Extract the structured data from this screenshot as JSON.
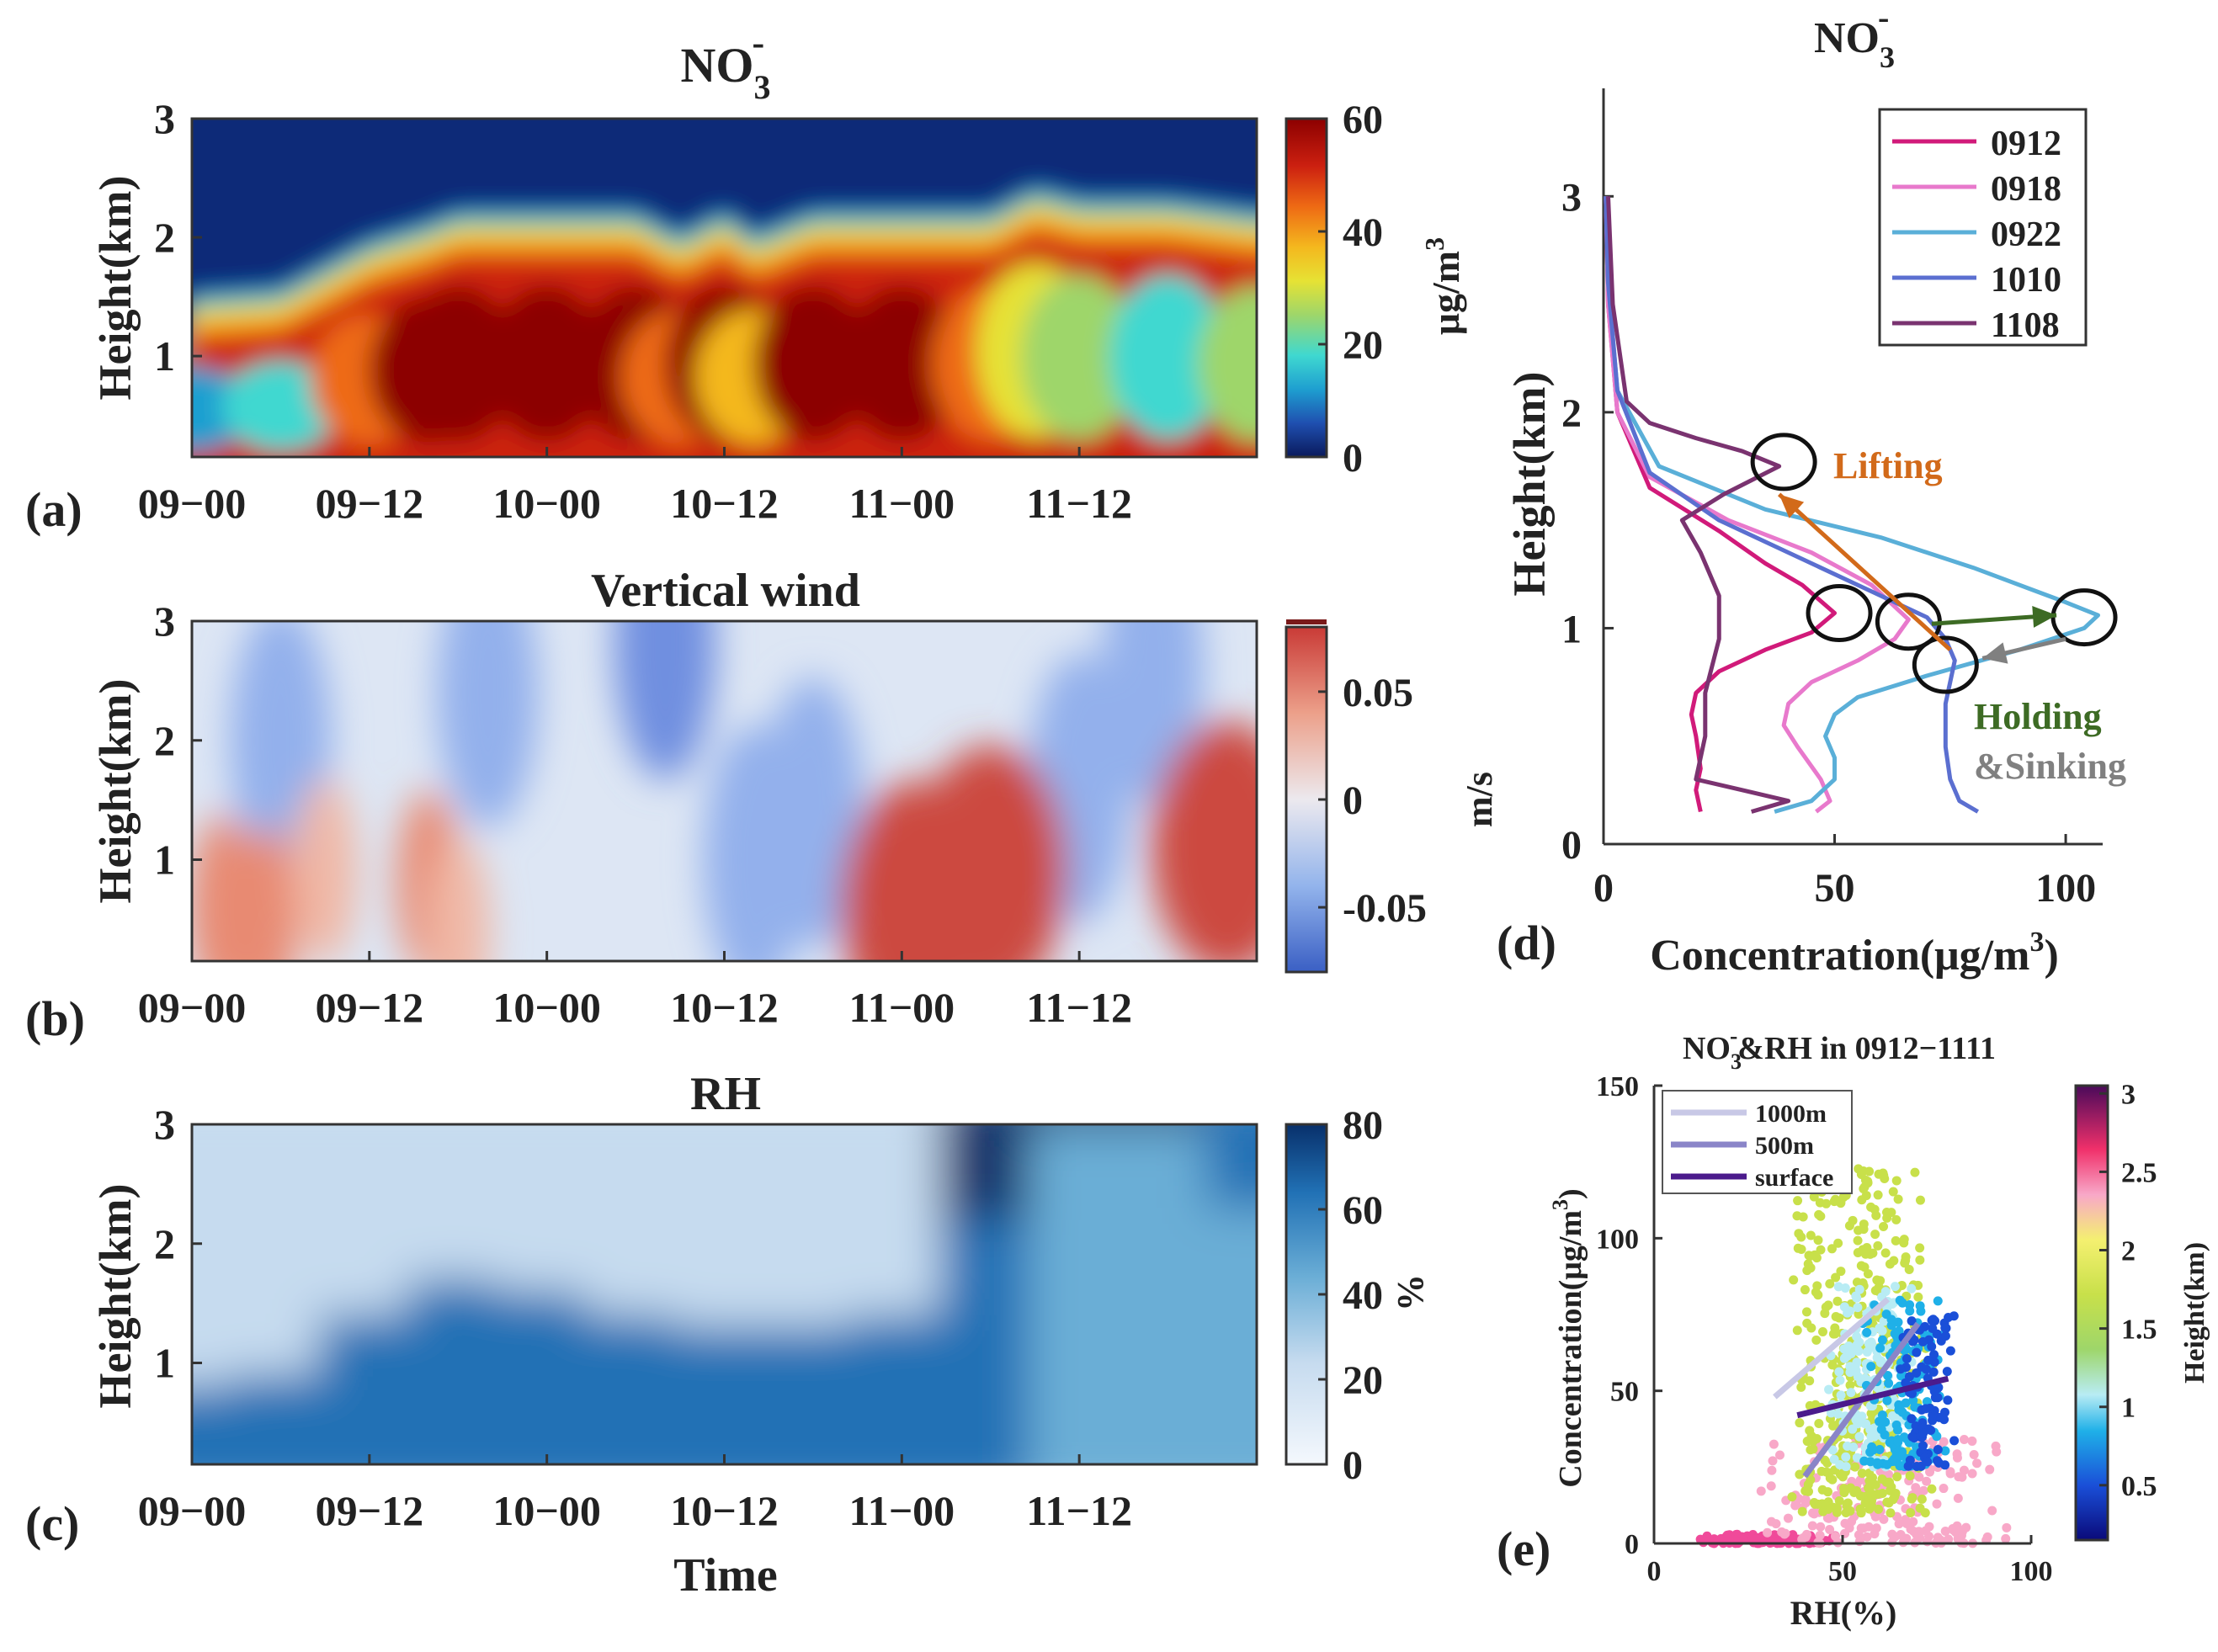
{
  "panels": {
    "a": {
      "label": "(a)",
      "title_main": "NO",
      "title_sub": "3",
      "title_sup": "-",
      "ylabel": "Height(km)",
      "yticks": [
        "1",
        "2",
        "3"
      ],
      "xticks": [
        "09−00",
        "09−12",
        "10−00",
        "10−12",
        "11−00",
        "11−12"
      ],
      "colorbar": {
        "ticks": [
          "0",
          "20",
          "40",
          "60"
        ],
        "unit_main": "μg/m",
        "unit_sup": "3"
      }
    },
    "b": {
      "label": "(b)",
      "title": "Vertical wind",
      "ylabel": "Height(km)",
      "yticks": [
        "1",
        "2",
        "3"
      ],
      "xticks": [
        "09−00",
        "09−12",
        "10−00",
        "10−12",
        "11−00",
        "11−12"
      ],
      "colorbar": {
        "ticks": [
          "-0.05",
          "0",
          "0.05"
        ],
        "unit": "m/s"
      }
    },
    "c": {
      "label": "(c)",
      "title": "RH",
      "ylabel": "Height(km)",
      "xlabel": "Time",
      "yticks": [
        "1",
        "2",
        "3"
      ],
      "xticks": [
        "09−00",
        "09−12",
        "10−00",
        "10−12",
        "11−00",
        "11−12"
      ],
      "colorbar": {
        "ticks": [
          "0",
          "20",
          "40",
          "60",
          "80"
        ],
        "unit": "%"
      }
    },
    "d": {
      "label": "(d)",
      "title_main": "NO",
      "title_sub": "3",
      "title_sup": "-",
      "ylabel": "Height(km)",
      "xlabel_main": "Concentration(μg/m",
      "xlabel_sup": "3",
      "xlabel_end": ")",
      "xticks": [
        "0",
        "50",
        "100"
      ],
      "yticks": [
        "0",
        "1",
        "2",
        "3"
      ],
      "annotations": {
        "lifting": "Lifting",
        "holding": "Holding",
        "sinking": "&Sinking"
      }
    },
    "e": {
      "label": "(e)",
      "title_a": "NO",
      "title_sub": "3",
      "title_sup": "-",
      "title_b": "&RH in 0912−1111",
      "xlabel": "RH(%)",
      "ylabel_main": "Concentration(μg/m",
      "ylabel_sup": "3",
      "ylabel_end": ")",
      "xticks": [
        "0",
        "50",
        "100"
      ],
      "yticks": [
        "0",
        "50",
        "100",
        "150"
      ],
      "colorbar": {
        "ticks": [
          "0.5",
          "1",
          "1.5",
          "2",
          "2.5",
          "3"
        ],
        "label": "Height(km)"
      }
    }
  },
  "chart_data": [
    {
      "type": "heatmap",
      "panel": "a",
      "title": "NO3-",
      "ylabel": "Height(km)",
      "xlim": [
        "09-00",
        "12-00"
      ],
      "ylim": [
        0.15,
        3
      ],
      "clim": [
        0,
        60
      ],
      "colormap": "jet",
      "colorbar_unit": "μg/m3",
      "x_hours": [
        0,
        6,
        12,
        16,
        18,
        24,
        30,
        33,
        36,
        38,
        42,
        48,
        54,
        57,
        60,
        66,
        72
      ],
      "cloud_top_km": [
        1.0,
        1.05,
        1.45,
        1.6,
        1.7,
        1.7,
        1.7,
        1.5,
        1.7,
        1.5,
        1.7,
        1.7,
        1.7,
        1.9,
        1.8,
        1.8,
        1.7
      ],
      "peak_concentration": [
        10,
        14,
        40,
        58,
        60,
        60,
        60,
        40,
        60,
        35,
        60,
        60,
        42,
        30,
        25,
        18,
        22
      ]
    },
    {
      "type": "heatmap",
      "panel": "b",
      "title": "Vertical wind",
      "ylabel": "Height(km)",
      "xlim": [
        "09-00",
        "12-00"
      ],
      "ylim": [
        0.15,
        3
      ],
      "clim": [
        -0.08,
        0.08
      ],
      "colormap": "diverging blue-white-red",
      "colorbar_unit": "m/s",
      "updraft_cells": [
        {
          "center_hours": 2,
          "center_km": 0.6,
          "value": 0.03
        },
        {
          "center_hours": 5,
          "center_km": 0.5,
          "value": 0.03
        },
        {
          "center_hours": 9,
          "center_km": 0.9,
          "value": 0.02
        },
        {
          "center_hours": 16,
          "center_km": 0.8,
          "value": 0.03
        },
        {
          "center_hours": 18,
          "center_km": 0.4,
          "value": 0.02
        },
        {
          "center_hours": 49,
          "center_km": 0.6,
          "value": 0.06
        },
        {
          "center_hours": 54,
          "center_km": 0.9,
          "value": 0.06
        },
        {
          "center_hours": 70,
          "center_km": 1.1,
          "value": 0.07
        }
      ],
      "downdraft_cells": [
        {
          "center_hours": 6,
          "center_km": 2.0,
          "value": -0.03
        },
        {
          "center_hours": 20,
          "center_km": 2.4,
          "value": -0.03
        },
        {
          "center_hours": 32,
          "center_km": 2.8,
          "value": -0.05
        },
        {
          "center_hours": 38,
          "center_km": 1.0,
          "value": -0.04
        },
        {
          "center_hours": 42,
          "center_km": 1.4,
          "value": -0.03
        },
        {
          "center_hours": 60,
          "center_km": 1.6,
          "value": -0.03
        },
        {
          "center_hours": 65,
          "center_km": 2.6,
          "value": -0.03
        }
      ]
    },
    {
      "type": "heatmap",
      "panel": "c",
      "title": "RH",
      "xlabel": "Time",
      "ylabel": "Height(km)",
      "xlim": [
        "09-00",
        "12-00"
      ],
      "ylim": [
        0.15,
        3
      ],
      "clim": [
        0,
        80
      ],
      "colormap": "Blues",
      "colorbar_unit": "%",
      "x_hours": [
        0,
        6,
        12,
        18,
        24,
        30,
        36,
        42,
        48,
        54,
        60,
        66,
        72
      ],
      "surface_rh": [
        45,
        50,
        55,
        55,
        60,
        60,
        62,
        60,
        55,
        50,
        40,
        30,
        25
      ],
      "layer_top_km": [
        0.8,
        0.9,
        1.4,
        1.7,
        1.6,
        1.4,
        1.3,
        1.3,
        1.4,
        2.2,
        3.0,
        3.0,
        2.3
      ],
      "aloft_rh": [
        5,
        8,
        12,
        15,
        12,
        15,
        10,
        8,
        20,
        80,
        80,
        80,
        60
      ]
    },
    {
      "type": "line",
      "panel": "d",
      "title": "NO3-",
      "xlabel": "Concentration(μg/m3)",
      "ylabel": "Height(km)",
      "xlim": [
        0,
        108
      ],
      "ylim": [
        0,
        3.5
      ],
      "legend_position": "top-right",
      "series": [
        {
          "name": "0912",
          "color": "#d11a7a",
          "points": [
            [
              21,
              0.15
            ],
            [
              20,
              0.25
            ],
            [
              21,
              0.35
            ],
            [
              20,
              0.5
            ],
            [
              19,
              0.6
            ],
            [
              20,
              0.7
            ],
            [
              25,
              0.8
            ],
            [
              35,
              0.9
            ],
            [
              45,
              0.98
            ],
            [
              50,
              1.07
            ],
            [
              43,
              1.2
            ],
            [
              35,
              1.3
            ],
            [
              25,
              1.45
            ],
            [
              10,
              1.65
            ],
            [
              3,
              2.0
            ],
            [
              1,
              2.5
            ],
            [
              0.5,
              3.0
            ]
          ]
        },
        {
          "name": "0918",
          "color": "#e879cc",
          "points": [
            [
              46,
              0.15
            ],
            [
              49,
              0.2
            ],
            [
              47,
              0.3
            ],
            [
              42,
              0.45
            ],
            [
              39,
              0.55
            ],
            [
              40,
              0.65
            ],
            [
              45,
              0.75
            ],
            [
              55,
              0.85
            ],
            [
              63,
              0.95
            ],
            [
              66,
              1.04
            ],
            [
              58,
              1.2
            ],
            [
              45,
              1.35
            ],
            [
              27,
              1.5
            ],
            [
              10,
              1.7
            ],
            [
              3,
              2.0
            ],
            [
              1,
              2.5
            ],
            [
              0.5,
              3.0
            ]
          ]
        },
        {
          "name": "0922",
          "color": "#5aafd8",
          "points": [
            [
              37,
              0.15
            ],
            [
              45,
              0.2
            ],
            [
              50,
              0.3
            ],
            [
              50,
              0.4
            ],
            [
              48,
              0.5
            ],
            [
              50,
              0.6
            ],
            [
              55,
              0.68
            ],
            [
              70,
              0.78
            ],
            [
              90,
              0.9
            ],
            [
              104,
              1.0
            ],
            [
              107,
              1.06
            ],
            [
              100,
              1.12
            ],
            [
              80,
              1.28
            ],
            [
              60,
              1.42
            ],
            [
              35,
              1.55
            ],
            [
              12,
              1.75
            ],
            [
              3,
              2.1
            ],
            [
              1,
              2.6
            ],
            [
              0.5,
              3.0
            ]
          ]
        },
        {
          "name": "1010",
          "color": "#5b6fd0",
          "points": [
            [
              81,
              0.15
            ],
            [
              77,
              0.2
            ],
            [
              75,
              0.3
            ],
            [
              74,
              0.45
            ],
            [
              74,
              0.55
            ],
            [
              74,
              0.65
            ],
            [
              75,
              0.75
            ],
            [
              76,
              0.85
            ],
            [
              74,
              0.95
            ],
            [
              70,
              1.05
            ],
            [
              55,
              1.2
            ],
            [
              40,
              1.35
            ],
            [
              25,
              1.5
            ],
            [
              10,
              1.72
            ],
            [
              3,
              2.1
            ],
            [
              1,
              2.6
            ],
            [
              0.5,
              3.0
            ]
          ]
        },
        {
          "name": "1108",
          "color": "#7a3370",
          "points": [
            [
              32,
              0.15
            ],
            [
              40,
              0.2
            ],
            [
              30,
              0.25
            ],
            [
              20,
              0.3
            ],
            [
              22,
              0.5
            ],
            [
              22,
              0.7
            ],
            [
              25,
              0.95
            ],
            [
              25,
              1.15
            ],
            [
              21,
              1.35
            ],
            [
              17,
              1.5
            ],
            [
              26,
              1.62
            ],
            [
              38,
              1.75
            ],
            [
              30,
              1.82
            ],
            [
              20,
              1.88
            ],
            [
              10,
              1.95
            ],
            [
              5,
              2.05
            ],
            [
              2,
              2.5
            ],
            [
              1,
              3.0
            ]
          ]
        }
      ],
      "markers": [
        {
          "x": 39,
          "y": 1.77
        },
        {
          "x": 51,
          "y": 1.07
        },
        {
          "x": 66,
          "y": 1.03
        },
        {
          "x": 74,
          "y": 0.83
        },
        {
          "x": 104,
          "y": 1.05
        }
      ],
      "arrows": [
        {
          "name": "Lifting",
          "color": "#d26a1a",
          "from": [
            75,
            0.9
          ],
          "to": [
            38,
            1.62
          ]
        },
        {
          "name": "Holding",
          "color": "#3d6b24",
          "from": [
            71,
            1.02
          ],
          "to": [
            98,
            1.06
          ]
        },
        {
          "name": "&Sinking",
          "color": "#808080",
          "from": [
            100,
            0.95
          ],
          "to": [
            82,
            0.86
          ]
        }
      ]
    },
    {
      "type": "scatter",
      "panel": "e",
      "title": "NO3-&RH in 0912-1111",
      "xlabel": "RH(%)",
      "ylabel": "Concentration(μg/m3)",
      "xlim": [
        0,
        100
      ],
      "ylim": [
        0,
        150
      ],
      "colorbar": {
        "label": "Height(km)",
        "clim": [
          0.15,
          3.05
        ],
        "colormap": "jet-like with green, yellow, pink, purple top"
      },
      "legend_position": "top-left",
      "point_clusters": [
        {
          "height_km": 0.2,
          "rh_range": [
            10,
            50
          ],
          "conc_range": [
            0,
            3
          ],
          "count": 120
        },
        {
          "height_km": 2.2,
          "rh_range": [
            25,
            98
          ],
          "conc_range": [
            0,
            35
          ],
          "count": 200
        },
        {
          "height_km": 1.6,
          "rh_range": [
            35,
            75
          ],
          "conc_range": [
            10,
            125
          ],
          "count": 420
        },
        {
          "height_km": 1.0,
          "rh_range": [
            45,
            70
          ],
          "conc_range": [
            25,
            85
          ],
          "count": 160
        },
        {
          "height_km": 0.6,
          "rh_range": [
            55,
            78
          ],
          "conc_range": [
            25,
            80
          ],
          "count": 150
        },
        {
          "height_km": 0.25,
          "rh_range": [
            65,
            80
          ],
          "conc_range": [
            25,
            75
          ],
          "count": 90
        }
      ],
      "fit_lines": [
        {
          "name": "1000m",
          "color": "#c8c8e6",
          "from": [
            32,
            48
          ],
          "to": [
            62,
            80
          ]
        },
        {
          "name": "500m",
          "color": "#8a85c8",
          "from": [
            40,
            22
          ],
          "to": [
            70,
            72
          ]
        },
        {
          "name": "surface",
          "color": "#4b1b8c",
          "from": [
            38,
            42
          ],
          "to": [
            78,
            54
          ]
        }
      ]
    }
  ]
}
